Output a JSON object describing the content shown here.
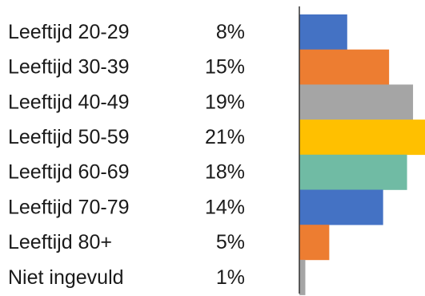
{
  "chart_data": {
    "type": "bar",
    "orientation": "horizontal",
    "categories": [
      "Leeftijd 20-29",
      "Leeftijd 30-39",
      "Leeftijd 40-49",
      "Leeftijd 50-59",
      "Leeftijd 60-69",
      "Leeftijd 70-79",
      "Leeftijd 80+",
      "Niet ingevuld"
    ],
    "values": [
      8,
      15,
      19,
      21,
      18,
      14,
      5,
      1
    ],
    "value_labels": [
      "8%",
      "15%",
      "19%",
      "21%",
      "18%",
      "14%",
      "5%",
      "1%"
    ],
    "unit": "%",
    "xlim": [
      0,
      21
    ],
    "grid": false,
    "legend": "none",
    "title": "",
    "xlabel": "",
    "ylabel": "",
    "colors": [
      "#4472C4",
      "#ED7D31",
      "#A5A5A5",
      "#FFC000",
      "#70BBA4",
      "#4472C4",
      "#ED7D31",
      "#A5A5A5"
    ],
    "axis_color": "#333333"
  }
}
